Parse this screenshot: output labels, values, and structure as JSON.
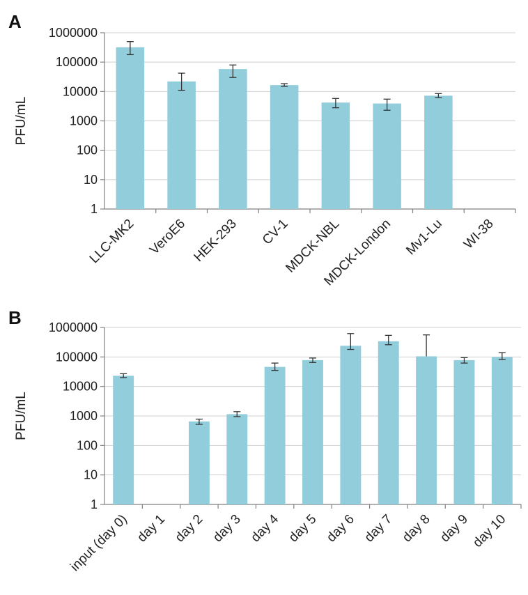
{
  "chart_data": [
    {
      "panel": "A",
      "type": "bar",
      "ylabel": "PFU/mL",
      "yscale": "log",
      "ylim": [
        1,
        1000000
      ],
      "yticks": [
        "1",
        "10",
        "100",
        "1000",
        "10000",
        "100000",
        "1000000"
      ],
      "grid": true,
      "bar_color": "#92cddc",
      "categories": [
        "LLC-MK2",
        "VeroE6",
        "HEK-293",
        "CV-1",
        "MDCK-NBL",
        "MDCK-London",
        "Mv1-Lu",
        "WI-38"
      ],
      "values": [
        320000,
        22000,
        58000,
        16500,
        4200,
        3900,
        7200,
        null
      ],
      "error_low": [
        180000,
        11000,
        30000,
        15000,
        2800,
        2300,
        6200,
        null
      ],
      "error_high": [
        500000,
        42000,
        80000,
        18500,
        5800,
        5500,
        8500,
        null
      ]
    },
    {
      "panel": "B",
      "type": "bar",
      "ylabel": "PFU/mL",
      "yscale": "log",
      "ylim": [
        1,
        1000000
      ],
      "yticks": [
        "1",
        "10",
        "100",
        "1000",
        "10000",
        "100000",
        "1000000"
      ],
      "grid": true,
      "bar_color": "#92cddc",
      "categories": [
        "input (day 0)",
        "day 1",
        "day 2",
        "day 3",
        "day 4",
        "day 5",
        "day 6",
        "day 7",
        "day 8",
        "day 9",
        "day 10"
      ],
      "values": [
        23000,
        null,
        650,
        1150,
        46000,
        78000,
        240000,
        340000,
        105000,
        78000,
        100000
      ],
      "error_low": [
        20000,
        null,
        520,
        950,
        35000,
        65000,
        180000,
        260000,
        null,
        62000,
        82000
      ],
      "error_high": [
        27000,
        null,
        780,
        1400,
        62000,
        92000,
        620000,
        540000,
        560000,
        95000,
        140000
      ]
    }
  ]
}
